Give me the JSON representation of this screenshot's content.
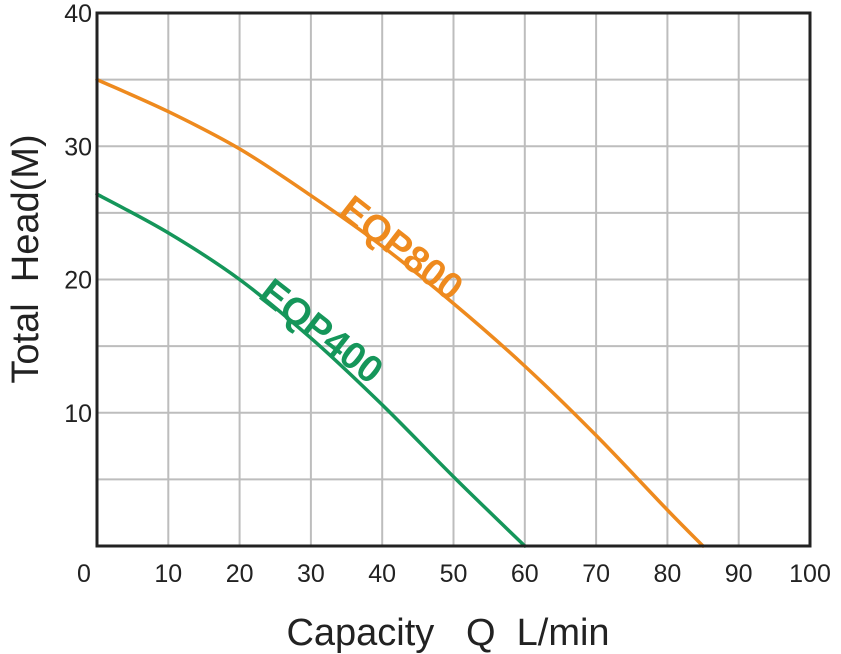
{
  "chart_data": {
    "type": "line",
    "title": "",
    "xlabel": "Capacity   Q  L/min",
    "ylabel": "Total  Head(M)",
    "xlim": [
      0,
      100
    ],
    "ylim": [
      0,
      40
    ],
    "grid": true,
    "x_ticks": [
      10,
      20,
      30,
      40,
      50,
      60,
      70,
      80,
      90,
      100
    ],
    "y_ticks": [
      10,
      20,
      30,
      40
    ],
    "origin_label": "0",
    "series": [
      {
        "name": "EQP800",
        "color": "#ee8a1e",
        "x": [
          0,
          10,
          20,
          30,
          40,
          50,
          60,
          70,
          80,
          85
        ],
        "y": [
          35,
          32.6,
          29.8,
          26.3,
          22.5,
          18.2,
          13.5,
          8.3,
          2.7,
          0
        ]
      },
      {
        "name": "EQP400",
        "color": "#15965a",
        "x": [
          0,
          10,
          20,
          30,
          40,
          50,
          60
        ],
        "y": [
          26.4,
          23.5,
          20,
          15.6,
          10.6,
          5.2,
          0
        ]
      }
    ]
  }
}
